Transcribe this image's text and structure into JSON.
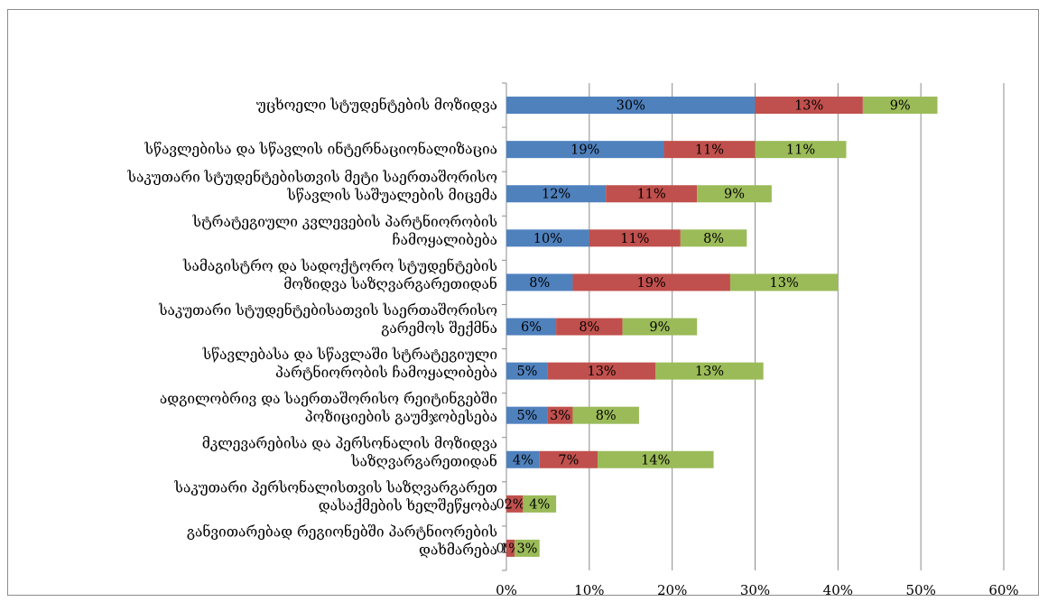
{
  "chart_data": {
    "type": "bar",
    "orientation": "horizontal",
    "stacked": true,
    "title": "",
    "xlabel": "",
    "ylabel": "",
    "xlim": [
      0,
      60
    ],
    "x_ticks": [
      "0%",
      "10%",
      "20%",
      "30%",
      "40%",
      "50%",
      "60%"
    ],
    "grid": true,
    "legend": "none",
    "categories": [
      [
        "უცხოელი სტუდენტების მოზიდვა"
      ],
      [
        "სწავლებისა და სწავლის ინტერნაციონალიზაცია"
      ],
      [
        "საკუთარი სტუდენტებისთვის მეტი საერთაშორისო",
        "სწავლის საშუალების მიცემა"
      ],
      [
        "სტრატეგიული კვლევების პარტნიორობის",
        "ჩამოყალიბება"
      ],
      [
        "სამაგისტრო და სადოქტორო სტუდენტების",
        "მოზიდვა საზღვარგარეთიდან"
      ],
      [
        "საკუთარი სტუდენტებისათვის საერთაშორისო",
        "გარემოს შექმნა"
      ],
      [
        "სწავლებასა და სწავლაში სტრატეგიული",
        "პარტნიორობის ჩამოყალიბება"
      ],
      [
        "ადგილობრივ და საერთაშორისო რეიტინგებში",
        "პოზიციების გაუმჯობესება"
      ],
      [
        "მკლევარებისა და პერსონალის მოზიდვა",
        "საზღვარგარეთიდან"
      ],
      [
        "საკუთარი პერსონალისთვის საზღვარგარეთ",
        "დასაქმების ხელშეწყობა"
      ],
      [
        "განვითარებად რეგიონებში პარტნიორების",
        "დახმარება"
      ]
    ],
    "series": [
      {
        "color": "#4f81bd",
        "values": [
          30,
          19,
          12,
          10,
          8,
          6,
          5,
          5,
          4,
          0,
          0
        ],
        "labels": [
          "30%",
          "19%",
          "12%",
          "10%",
          "8%",
          "6%",
          "5%",
          "5%",
          "4%",
          "0%",
          "0%"
        ]
      },
      {
        "color": "#c0504d",
        "values": [
          13,
          11,
          11,
          11,
          19,
          8,
          13,
          3,
          7,
          2,
          1
        ],
        "labels": [
          "13%",
          "11%",
          "11%",
          "11%",
          "19%",
          "8%",
          "13%",
          "3%",
          "7%",
          "2%",
          "1%"
        ]
      },
      {
        "color": "#9bbb59",
        "values": [
          9,
          11,
          9,
          8,
          13,
          9,
          13,
          8,
          14,
          4,
          3
        ],
        "labels": [
          "9%",
          "11%",
          "9%",
          "8%",
          "13%",
          "9%",
          "13%",
          "8%",
          "14%",
          "4%",
          "3%"
        ]
      }
    ]
  }
}
